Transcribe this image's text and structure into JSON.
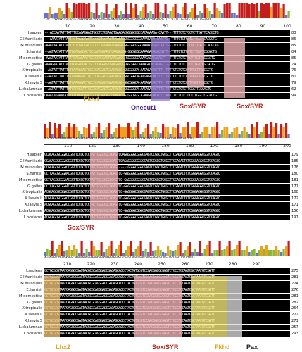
{
  "blocks": [
    {
      "ticks": [
        "10",
        "20",
        "30",
        "40",
        "50",
        "60",
        "70",
        "80",
        "90",
        "100"
      ],
      "consensus": "--A---AAAAAATATTTATC-AGAAAGAGC-AAACTGCCACAGGAGTGAAGACGG-GGCGGGCA-AAGAGACACTT---TTTT.TCTCTCTTGGTTCGCGCTG",
      "species": [
        {
          "name": "H.sapien",
          "seq": "---ACCAATATTTATTTGCAGAGGACTGCCTCTGGAAGTGAAGACGGGGCGGCCACAAAAGA-CAATT---TTTTCTCTGCTCTTGGTTCACGCTG",
          "end": "83"
        },
        {
          "name": "C.l.familiaris",
          "seq": "---AAAATATTTATTTGTAGAGAACTGCCCCTGGAAGTGAAGACGGGGCGGCCAAAAGAGA-CAATTG--TTTTCTCTCCTCTTGGTTCACGCTG",
          "end": "86"
        },
        {
          "name": "M.musculus",
          "seq": "-AAATAATATTTATTTGTCGAGGACTGCCCCTGGAAGTGAAGACGG-GGCGGGCAAAAGAGA-CAATT---TTTTCTCTGCTCTTGGTTCACGCTG",
          "end": "85"
        },
        {
          "name": "S.harrisii",
          "seq": "--AATAATATTTATTGCAGAGGACTGCCACAGGAAGTGAAGACGG-GGCGGGCAAAAGAGACACAGTT--TTTTCTCTGTTCTTGGTTCGCGCTG",
          "end": "84"
        },
        {
          "name": "M.domestica",
          "seq": "-AAATAATATTTATTTGAGAGAACTGCCCCAGGAGTGAAGACGG-GGCGGGCAAAAGAGACACAGTT--TTTTCTCTCTTCTTGGTTCGCGCTG",
          "end": "85"
        },
        {
          "name": "G.gallus",
          "seq": "-AAAGAATATTTATTGCAGAGGACTGCCCCAGGAGTGAAGACGG-GGCGGGCAAAAGAGACACAGTT--TTTTCTCTCTTCTTGGTTCGCGCTG",
          "end": "74"
        },
        {
          "name": "X.tropicalis",
          "seq": "--AATATTTATTTGTCAAAGGACTGCCCCAGGAGTGAAGACGG-GGCGGGCA-AAGAGACACTTT--TTTTCTCTCTCCTTTGGTTCGCGCTG",
          "end": "76"
        },
        {
          "name": "X.laevis.L",
          "seq": "--AATATTTATTTGTCAAAGGACTGCCCCAGGAGTGAAGACGG-GGCGGGCA-AAGAGACACTTT--TTTTCTCTCTCCTTTGGTTCGCGCTG",
          "end": "80"
        },
        {
          "name": "X.laevis.S",
          "seq": "--AATATTTATTTGTCAAAGGACTGCCCCAGGAGTGAAGACGG-GGCGGGCA-AAGAGACACTTT--TTTTCTCTCTCCTTTGGTTCGCGCTG",
          "end": "79"
        },
        {
          "name": "L.chalumnae",
          "seq": "--AATATTTATTTATCAGAGGATTGCCACAGGAGTGAAGACGG-GGCGGGCA-AAGAGACACTTTA-TTTTCTCTCTCTTCGGTTCGCACTG",
          "end": "62"
        },
        {
          "name": "L.oculatus",
          "seq": "CAAATATAAATATTTATCAGAGAAATGCCACAGGAGTGAAGACGG-GGCGGGCA-AAGAGACACTTTAATTTTCTCTCTCCTTCGGTTCGCACTG",
          "end": "99"
        }
      ],
      "motifs": [
        {
          "label": "Fkhd",
          "color": "#e3a21a"
        },
        {
          "label": "Onecut1",
          "color": "#4b1f86"
        },
        {
          "label": "Sox/SYR",
          "color": "#b5261e"
        },
        {
          "label": "Sox/SYR",
          "color": "#b5261e"
        }
      ]
    },
    {
      "ticks": [
        "110",
        "120",
        "130",
        "140",
        "150",
        "160",
        "170",
        "180",
        "190",
        "200"
      ],
      "consensus": "ACGCAGCGCGGTAAAATGGGCGGAGGCGGAGTTTGTGTGGGGCGGGAGAGTCTGGCTGCCTGGGGCTGTGCCGGTGGATGGGACAGGCGTCG",
      "species": [
        {
          "name": "H.sapien",
          "seq": "GCACAGCGCGGACCGGTTCCGCTCCTATTGGGCGGCGGAGTCCAGAGGGGCGGGGGAGTCCGGCTGCGCTTCGAGACTCTCGGGAGGCGGTCGAGCC",
          "end": "179"
        },
        {
          "name": "C.l.familiaris",
          "seq": "GCACAGCGCGGACCGGTTCCGCTCCTATTGGGCGGCGGAGTCCAGAGGGGCGGGGGAGTCCGGCTGCGCTTCGAGACTCTCGGGAGGCGGTCGAGCC",
          "end": "185"
        },
        {
          "name": "M.musculus",
          "seq": "GCGCAGCGCGGACCGGTTCCGCTCCTATTGGGCGGCGGAG------GGGGCGGGGGAGTCCGGCTGCGCTTCGAGACTCTCGGGAGGCGGTCGAGCC",
          "end": "178"
        },
        {
          "name": "S.harrisii",
          "seq": "GCTCAGCGCGGAACGGTTCCGCTCCTATTGGGCGGCGGAGTCC-GAGGGGCGGGGGAGTCCGGCTGCGCTTCGAGACTCTCGGGAGGCGGTCGAGCC",
          "end": "180"
        },
        {
          "name": "M.domestica",
          "seq": "GCTCAGCGCGGAACGGTTCCGCTCCTATTGGGCGGCGGAGTCC-GAGGGGCGGGGGAGTCCGGCTGCGCTTCGAGACTCTCGGGAGGCGGTCGAGCC",
          "end": "181"
        },
        {
          "name": "G.gallus",
          "seq": "GCTCAGCGCGGAACGGTTCCGCTCCTATTGGGCGGCGGAGTCC-GAGGGGCGGGGGAGTCCGGCTGCGCTTCGAGACTCTCGGGAGGCGGTCGAGCC",
          "end": "171"
        },
        {
          "name": "X.tropicalis",
          "seq": "ACGCAGCGCGGACCGGTTCCGCTCCTATTGGGCGGCGGAGTCC-GAGGGGCGGGGGAGTCCGGCTGCGCTTCGAGACTCTCGGGAGGCGGTCGAGCC",
          "end": "168"
        },
        {
          "name": "X.laevis.L",
          "seq": "ACGCAGCGCGGACCGGTTCCGCTCCTATTGGGCGGCGGAGTCC-GAGGGGCGGGGGAGTCCGGCTGCGCTTCGAGACTCTCGGGAGGCGGTCGAGCC",
          "end": "172"
        },
        {
          "name": "X.laevis.S",
          "seq": "ACGCAGCGCGGACCGGTTCCGCTCCTATTGGGCGGCGGAGTCC-GAGGGGCGGGGGAGTCCGGCTGCGCTTCGAGACTCTCGGGAGGCGGTCGAGCC",
          "end": "171"
        },
        {
          "name": "L.chalumnae",
          "seq": "ACGCAGCGCGGACCGGTTCCGCTCCTATTGGGCGGCGGAGTCC-GAGGGGCGGGGGAGTCCGGCTGCGCTTCGAGACTCTCGGGAGGCGGTCGAGCC",
          "end": "156"
        },
        {
          "name": "L.oculatus",
          "seq": "ACGCAGCGCGGACCGGTTCCGCTCCTATTGGGCGGCGGAGTCC-GAGGGGCGGGGGAGTCCGGCTGCGCTTCGAGACTCTCGGGAGGCGGTCGAGCC",
          "end": "197"
        }
      ],
      "motifs": [
        {
          "label": "Sox/SYR",
          "color": "#b5261e"
        }
      ]
    },
    {
      "ticks": [
        "210",
        "220",
        "230",
        "240",
        "250",
        "260",
        "270",
        "280",
        "290"
      ],
      "consensus": "GCTGCGCG-ACTAGAGCG-GAGTACGCGCAGGGAGCGAGAGCACCGCTG-CTGTGCGTCGGG-GCGCGGGTCTGCCTGCATGG-TAATAGGTT",
      "species": [
        {
          "name": "H.sapiens",
          "seq": "GCTGCGCGTAATCAGGGCGAGTACGCGCAGGGAGCGAGAGCACCCTACTGTGCGTCCGAGGGCGCGGGTCTGCCTGCAATGGCTAATGTCGGTT",
          "end": "275"
        },
        {
          "name": "C.l.familiaris",
          "seq": "GCTGCGCGTAATCAGGGCGAGTACGCGCAGGGAGCGAGAGCACCCTACTGTGCGTCCGAGGGCGCGGGTCTGCCTGCAATGGCTAATGTCGGTT",
          "end": "281"
        },
        {
          "name": "M.musculus",
          "seq": "GCTGCGCGTAATCAGGGCGAGTACGCGCAGGGAGCGAGAGCACCCTACTGTGCGTCCGAGGGCGCGGGTCTGCCTGCAATGGCTAATGTCGGTT",
          "end": "274"
        },
        {
          "name": "E.harrisii",
          "seq": "GCTGCGCGTAATCAGGGCGAGTACGCGCAGGGAGCGAGAGCACCCTACTGTGCGTCCGAGGGCGCGGGTCTGCCTGCAATGGCTAATGTCGGTT",
          "end": "276"
        },
        {
          "name": "M.domestica",
          "seq": "GCTGCGCGTAATCAGGGCGAGTACGCGCAGGGAGCGAGAGCACCCTACTGTGCGTCCGAGGGCGCGGGTCTGCCTGCAATGGCTAATGTCGGTT",
          "end": "281"
        },
        {
          "name": "G.gallus",
          "seq": "GCTGCGCGTAATCAGGGCGAGTACGCGCAGGGAGCGAGAGCACCCTACTGTGCGTCCGAGGGCGCGGGTCTGCCTGCAATGGCTAATGTCGGTT",
          "end": "282"
        },
        {
          "name": "X.tropicalis",
          "seq": "GCTGCGCGTAATCAGGGCGAGTACGCGCAGGGAGCGAGAGCACCCTACTGTGCGTCCGAGGGCGCGGGTCTGCCTGCAATGGCTAATGTCGGTT",
          "end": "264"
        },
        {
          "name": "X.laevis.L",
          "seq": "GCTGCGCGTAATCAGGGCGAGTACGCGCAGGGAGCGAGAGCACCCTACTGTGCGTCCGAGGGCGCGGGTCTGCCTGCAATGGCTAATGTCGGTT",
          "end": "272"
        },
        {
          "name": "X.laevis.S",
          "seq": "GCTGCGCGTAATCAGGGCGAGTACGCGCAGGGAGCGAGAGCACCCTACTGTGCGTCCGAGGGCGCGGGTCTGCCTGCAATGGCTAATGTCGGTT",
          "end": "271"
        },
        {
          "name": "L.chalumnae",
          "seq": "GCTGCGCGTAATCAGGGCGAGTACGCGCAGGGAGCGAGAGCACCCTACTGTGCGTCCGAGGGCGCGGGTCTGCCTGCAATGGCTAATGTCGGTT",
          "end": "257"
        },
        {
          "name": "L.oculatus",
          "seq": "GCTGCGCGTAATCAGGGCGAGTACGCGCAGGGAGCGAGAGCACCCTACTGTGCGTCCGAGGGCGCGGGTCTGCCTGCAATGGCTAATGTCGGTT",
          "end": "293"
        }
      ],
      "motifs": [
        {
          "label": "Lhx2",
          "color": "#e3a21a"
        },
        {
          "label": "Sox/SYR",
          "color": "#b5261e"
        },
        {
          "label": "Fkhd",
          "color": "#e3a21a"
        },
        {
          "label": "Pax",
          "color": "#222222"
        }
      ]
    }
  ],
  "colors": {
    "high": "#c41d1d",
    "medium": "#f0a11c",
    "low": "#8ab83a",
    "lowest": "#6a72c9",
    "fkhd_box": "#f5e77a",
    "onecut_box": "#9b7fd6",
    "sox_box": "#f2b5b8",
    "lhx_box": "#f0c47a",
    "pax_box": "#d9d9d9"
  }
}
